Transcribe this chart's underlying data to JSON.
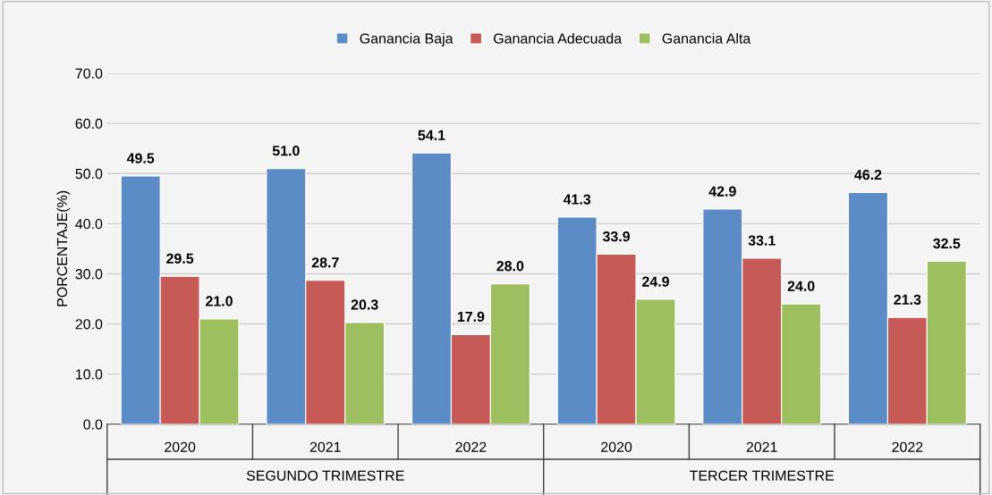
{
  "chart_data": {
    "type": "bar",
    "ylabel": "PORCENTAJE(%)",
    "categories": [
      "2020",
      "2021",
      "2022",
      "2020",
      "2021",
      "2022"
    ],
    "series": [
      {
        "name": "Ganancia Baja",
        "color": "#5b8cc6",
        "values": [
          49.5,
          51.0,
          54.1,
          41.3,
          42.9,
          46.2
        ],
        "value_labels": [
          "49.5",
          "51.0",
          "54.1",
          "41.3",
          "42.9",
          "46.2"
        ]
      },
      {
        "name": "Ganancia Adecuada",
        "color": "#c55a57",
        "values": [
          29.5,
          28.7,
          17.9,
          33.9,
          33.1,
          21.3
        ],
        "value_labels": [
          "29.5",
          "28.7",
          "17.9",
          "33.9",
          "33.1",
          "21.3"
        ]
      },
      {
        "name": "Ganancia Alta",
        "color": "#9dbf5f",
        "values": [
          21.0,
          20.3,
          28.0,
          24.9,
          24.0,
          32.5
        ],
        "value_labels": [
          "21.0",
          "20.3",
          "28.0",
          "24.9",
          "24.0",
          "32.5"
        ]
      }
    ],
    "annotations": [
      "SEGUNDO TRIMESTRE",
      "TERCER TRIMESTRE"
    ],
    "ylim": [
      0,
      70
    ],
    "yticks": [
      {
        "value": 0,
        "label": "0.0"
      },
      {
        "value": 10,
        "label": "10.0"
      },
      {
        "value": 20,
        "label": "20.0"
      },
      {
        "value": 30,
        "label": "30.0"
      },
      {
        "value": 40,
        "label": "40.0"
      },
      {
        "value": 50,
        "label": "50.0"
      },
      {
        "value": 60,
        "label": "60.0"
      },
      {
        "value": 70,
        "label": "70.0"
      }
    ],
    "grid": "y",
    "legend": "top"
  }
}
